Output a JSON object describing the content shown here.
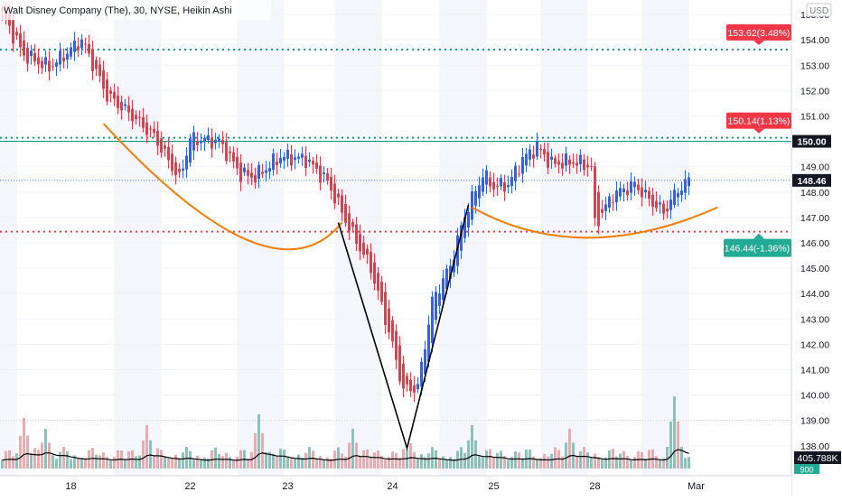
{
  "header": {
    "symbol_title": "Walt Disney Company (The), 30, NYSE, Heikin Ashi"
  },
  "currency_label": "USD",
  "chart_data": {
    "type": "candlestick",
    "title": "Walt Disney Company (The), 30, NYSE, Heikin Ashi",
    "price_axis": {
      "min": 137.6,
      "max": 155.5,
      "ticks": [
        "155.00",
        "154.00",
        "153.00",
        "152.00",
        "151.00",
        "149.00",
        "148.00",
        "147.00",
        "146.00",
        "145.00",
        "144.00",
        "143.00",
        "142.00",
        "141.00",
        "140.00",
        "139.00",
        "138.00"
      ]
    },
    "time_axis": {
      "labels": [
        {
          "label": "18",
          "t": 19
        },
        {
          "label": "22",
          "t": 52
        },
        {
          "label": "23",
          "t": 79
        },
        {
          "label": "24",
          "t": 108
        },
        {
          "label": "25",
          "t": 136
        },
        {
          "label": "28",
          "t": 164
        },
        {
          "label": "Mar",
          "t": 192
        }
      ]
    },
    "horizontal_levels": [
      {
        "name": "target-high",
        "price": 153.62,
        "style": "dotted",
        "color": "#089981"
      },
      {
        "name": "neckline",
        "price": 150.14,
        "style": "dotted",
        "color": "#089981"
      },
      {
        "name": "stop",
        "price": 146.44,
        "style": "dotted",
        "color": "#f23645"
      }
    ],
    "price_labels": [
      {
        "name": "target-high",
        "price": 153.62,
        "text": "153.62(3.48%)",
        "color": "#f23645"
      },
      {
        "name": "neckline",
        "price": 150.14,
        "text": "150.14(1.13%)",
        "color": "#f23645"
      },
      {
        "name": "level-150",
        "price": 150.0,
        "text": "150.00",
        "color": "#131722"
      },
      {
        "name": "last-price",
        "price": 148.46,
        "text": "148.46",
        "color": "#131722"
      },
      {
        "name": "stop",
        "price": 146.44,
        "text": "146.44(-1.36%)",
        "color": "#22ab94"
      }
    ],
    "last_price": 148.46,
    "volume_label": "405.788K",
    "volume_sublabel": "900",
    "key_points": [
      {
        "t": 0,
        "price": 155.0
      },
      {
        "t": 6,
        "price": 153.4
      },
      {
        "t": 13,
        "price": 152.9
      },
      {
        "t": 22,
        "price": 154.0
      },
      {
        "t": 29,
        "price": 151.8
      },
      {
        "t": 36,
        "price": 151.0
      },
      {
        "t": 42,
        "price": 150.2
      },
      {
        "t": 49,
        "price": 148.5
      },
      {
        "t": 52,
        "price": 150.1
      },
      {
        "t": 60,
        "price": 150.0
      },
      {
        "t": 66,
        "price": 148.7
      },
      {
        "t": 70,
        "price": 148.6
      },
      {
        "t": 77,
        "price": 149.4
      },
      {
        "t": 84,
        "price": 149.3
      },
      {
        "t": 90,
        "price": 148.4
      },
      {
        "t": 96,
        "price": 146.6
      },
      {
        "t": 102,
        "price": 145.0
      },
      {
        "t": 107,
        "price": 142.5
      },
      {
        "t": 111,
        "price": 140.2
      },
      {
        "t": 115,
        "price": 140.3
      },
      {
        "t": 119,
        "price": 143.7
      },
      {
        "t": 124,
        "price": 145.1
      },
      {
        "t": 128,
        "price": 147.1
      },
      {
        "t": 133,
        "price": 148.7
      },
      {
        "t": 136,
        "price": 148.2
      },
      {
        "t": 140,
        "price": 148.3
      },
      {
        "t": 144,
        "price": 149.3
      },
      {
        "t": 148,
        "price": 149.8
      },
      {
        "t": 152,
        "price": 149.1
      },
      {
        "t": 158,
        "price": 149.2
      },
      {
        "t": 163,
        "price": 149.0
      },
      {
        "t": 164,
        "price": 146.7
      },
      {
        "t": 169,
        "price": 147.9
      },
      {
        "t": 175,
        "price": 148.3
      },
      {
        "t": 179,
        "price": 147.7
      },
      {
        "t": 183,
        "price": 147.2
      },
      {
        "t": 187,
        "price": 148.1
      },
      {
        "t": 190,
        "price": 148.46
      }
    ],
    "volume_spikes": [
      {
        "t": 6,
        "v": 0.7
      },
      {
        "t": 12,
        "v": 0.55
      },
      {
        "t": 40,
        "v": 0.6
      },
      {
        "t": 71,
        "v": 0.75
      },
      {
        "t": 97,
        "v": 0.55
      },
      {
        "t": 113,
        "v": 0.35
      },
      {
        "t": 130,
        "v": 0.6
      },
      {
        "t": 157,
        "v": 0.55
      },
      {
        "t": 186,
        "v": 1.0
      }
    ],
    "patterns": [
      {
        "type": "arc",
        "name": "left-cup",
        "points": [
          {
            "t": 28,
            "price": 150.7
          },
          {
            "t": 68,
            "price": 146.1
          },
          {
            "t": 94,
            "price": 146.8
          }
        ]
      },
      {
        "type": "arc",
        "name": "right-cup",
        "points": [
          {
            "t": 130,
            "price": 147.4
          },
          {
            "t": 162,
            "price": 146.2
          },
          {
            "t": 198,
            "price": 147.4
          }
        ]
      },
      {
        "type": "polyline",
        "name": "v-pattern",
        "points": [
          {
            "t": 93,
            "price": 146.8
          },
          {
            "t": 112,
            "price": 137.9
          },
          {
            "t": 129,
            "price": 147.5
          }
        ]
      }
    ],
    "colors": {
      "up": "#2962ff",
      "down": "#f23645",
      "vol_up": "#7fc8bc",
      "vol_down": "#f7a5aa",
      "pattern": "#f57c00",
      "ma": "#000000"
    }
  }
}
